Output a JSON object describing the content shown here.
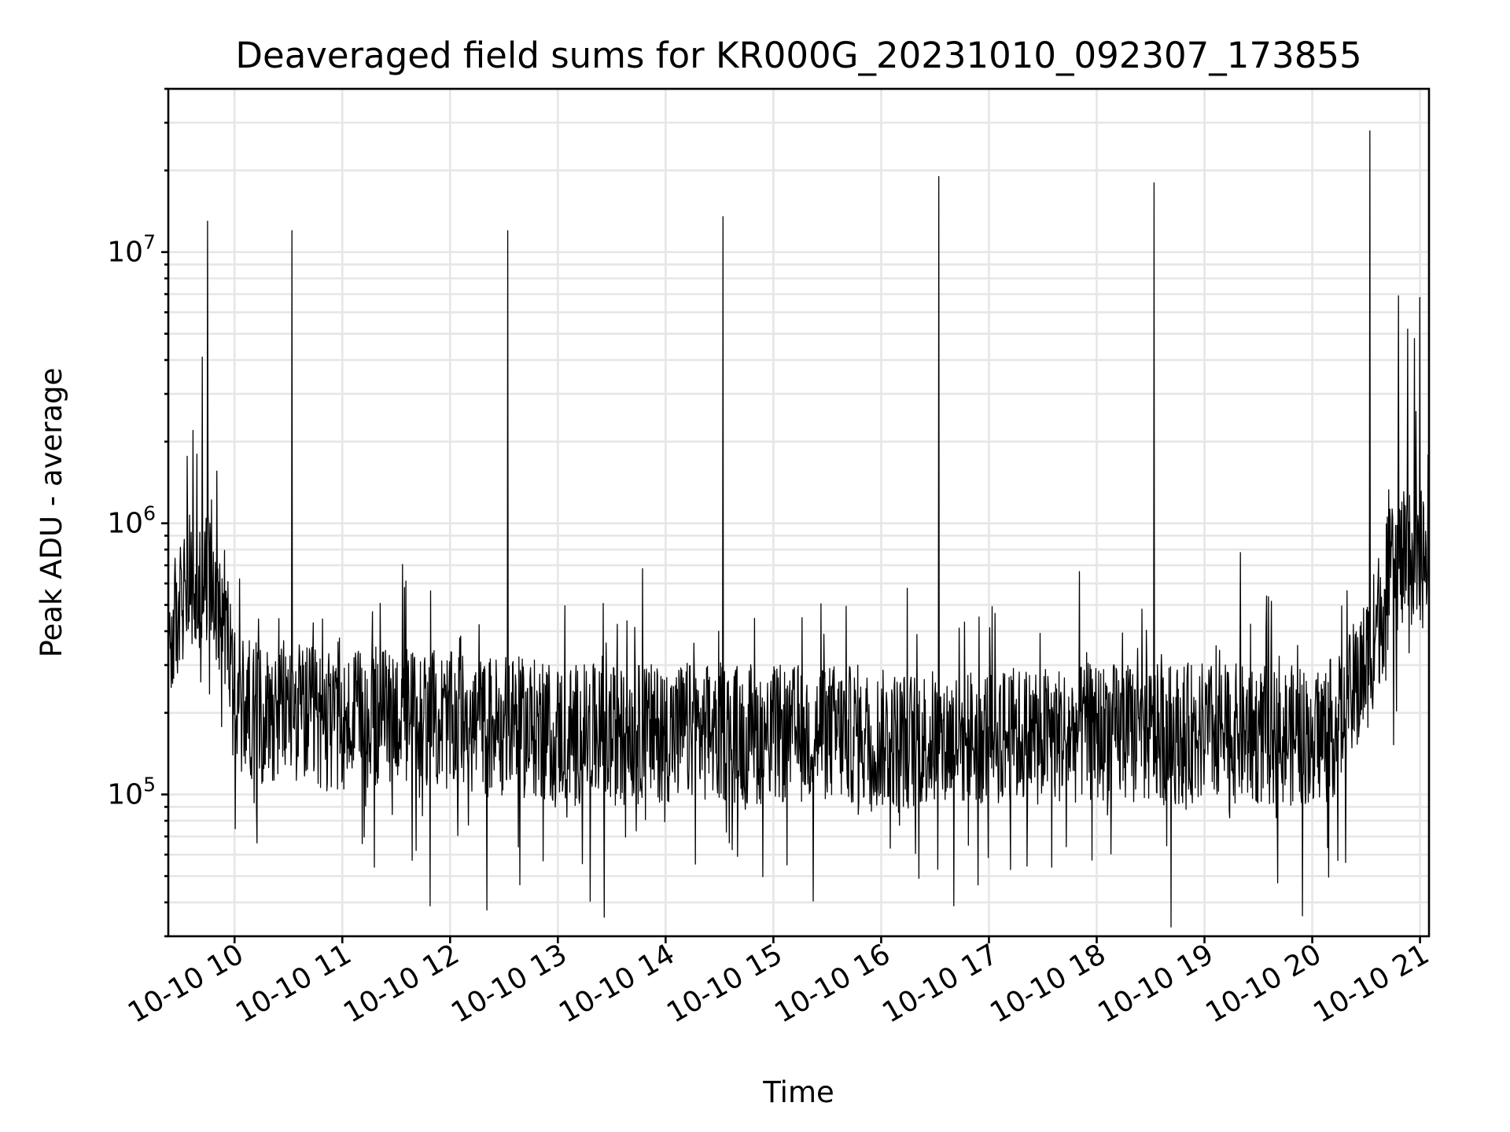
{
  "chart_data": {
    "type": "line",
    "title": "Deaveraged field sums for KR000G_20231010_092307_173855",
    "xlabel": "Time",
    "ylabel": "Peak ADU - average",
    "xscale": "time",
    "yscale": "log",
    "xlim": [
      "2023-10-10 09:23:07",
      "2023-10-10 21:05:00"
    ],
    "ylim": [
      30000,
      40000000
    ],
    "grid": true,
    "x_ticks": [
      "2023-10-10 10:00",
      "2023-10-10 11:00",
      "2023-10-10 12:00",
      "2023-10-10 13:00",
      "2023-10-10 14:00",
      "2023-10-10 15:00",
      "2023-10-10 16:00",
      "2023-10-10 17:00",
      "2023-10-10 18:00",
      "2023-10-10 19:00",
      "2023-10-10 20:00",
      "2023-10-10 21:00"
    ],
    "x_tick_labels": [
      "10-10 10",
      "10-10 11",
      "10-10 12",
      "10-10 13",
      "10-10 14",
      "10-10 15",
      "10-10 16",
      "10-10 17",
      "10-10 18",
      "10-10 19",
      "10-10 20",
      "10-10 21"
    ],
    "y_ticks": [
      100000,
      1000000,
      10000000
    ],
    "y_tick_labels": [
      {
        "base": "10",
        "exp": "5"
      },
      {
        "base": "10",
        "exp": "6"
      },
      {
        "base": "10",
        "exp": "7"
      }
    ],
    "series": [
      {
        "color": "#000000",
        "x": [
          "2023-10-10 09:23",
          "2023-10-10 09:30",
          "2023-10-10 09:35",
          "2023-10-10 09:40",
          "2023-10-10 09:45",
          "2023-10-10 09:50",
          "2023-10-10 09:55",
          "2023-10-10 10:00",
          "2023-10-10 10:15",
          "2023-10-10 10:30",
          "2023-10-10 10:45",
          "2023-10-10 11:00",
          "2023-10-10 11:30",
          "2023-10-10 12:00",
          "2023-10-10 12:30",
          "2023-10-10 13:00",
          "2023-10-10 13:30",
          "2023-10-10 14:00",
          "2023-10-10 14:30",
          "2023-10-10 15:00",
          "2023-10-10 15:30",
          "2023-10-10 16:00",
          "2023-10-10 16:30",
          "2023-10-10 17:00",
          "2023-10-10 17:30",
          "2023-10-10 18:00",
          "2023-10-10 18:30",
          "2023-10-10 19:00",
          "2023-10-10 19:30",
          "2023-10-10 20:00",
          "2023-10-10 20:15",
          "2023-10-10 20:30",
          "2023-10-10 20:45",
          "2023-10-10 21:00",
          "2023-10-10 21:05"
        ],
        "y": [
          350000,
          500000,
          600000,
          500000,
          650000,
          550000,
          450000,
          220000,
          200000,
          210000,
          190000,
          180000,
          200000,
          185000,
          180000,
          170000,
          165000,
          170000,
          170000,
          165000,
          170000,
          160000,
          160000,
          165000,
          165000,
          170000,
          165000,
          170000,
          165000,
          165000,
          180000,
          300000,
          700000,
          750000,
          700000
        ]
      }
    ],
    "spikes": [
      {
        "x": "2023-10-10 09:37",
        "y": 2200000
      },
      {
        "x": "2023-10-10 09:39",
        "y": 1800000
      },
      {
        "x": "2023-10-10 09:42",
        "y": 4100000
      },
      {
        "x": "2023-10-10 09:45",
        "y": 13000000
      },
      {
        "x": "2023-10-10 10:32",
        "y": 12000000
      },
      {
        "x": "2023-10-10 12:32",
        "y": 12000000
      },
      {
        "x": "2023-10-10 13:47",
        "y": 680000
      },
      {
        "x": "2023-10-10 14:32",
        "y": 13500000
      },
      {
        "x": "2023-10-10 16:32",
        "y": 19000000
      },
      {
        "x": "2023-10-10 18:32",
        "y": 18000000
      },
      {
        "x": "2023-10-10 19:20",
        "y": 780000
      },
      {
        "x": "2023-10-10 20:32",
        "y": 28000000
      },
      {
        "x": "2023-10-10 20:48",
        "y": 6900000
      },
      {
        "x": "2023-10-10 20:53",
        "y": 5200000
      },
      {
        "x": "2023-10-10 20:57",
        "y": 4800000
      },
      {
        "x": "2023-10-10 21:00",
        "y": 6800000
      }
    ]
  }
}
